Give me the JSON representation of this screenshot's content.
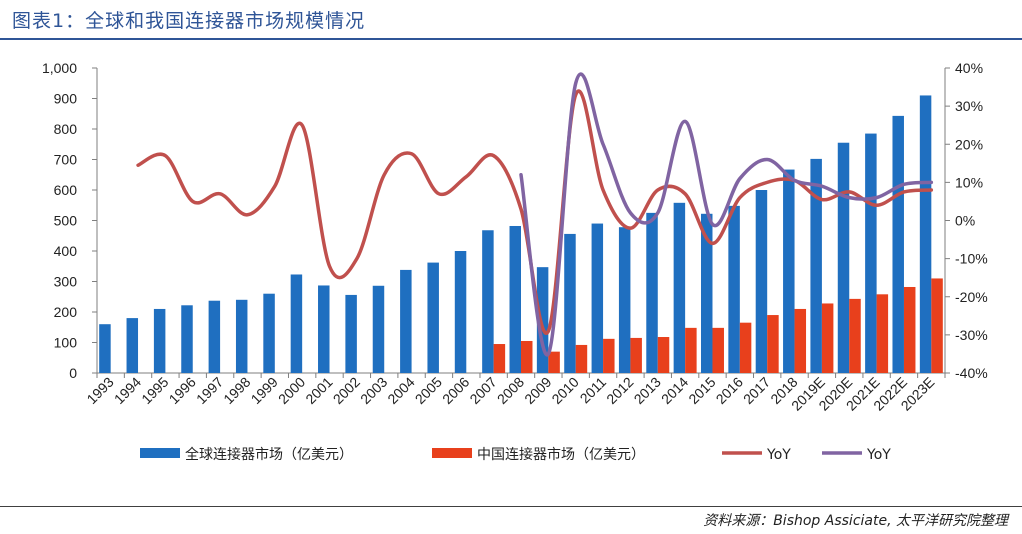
{
  "header": {
    "title": "图表1：全球和我国连接器市场规模情况"
  },
  "footer": {
    "source": "资料来源：Bishop Assiciate, 太平洋研究院整理"
  },
  "colors": {
    "global": "#1f6fc0",
    "china": "#e8401c",
    "yoy_global": "#c0504d",
    "yoy_china": "#8064a2",
    "axis": "#7f7f7f",
    "title": "#2f5597"
  },
  "chart_data": {
    "type": "bar",
    "categories": [
      "1993",
      "1994",
      "1995",
      "1996",
      "1997",
      "1998",
      "1999",
      "2000",
      "2001",
      "2002",
      "2003",
      "2004",
      "2005",
      "2006",
      "2007",
      "2008",
      "2009",
      "2010",
      "2011",
      "2012",
      "2013",
      "2014",
      "2015",
      "2016",
      "2017",
      "2018",
      "2019E",
      "2020E",
      "2021E",
      "2022E",
      "2023E"
    ],
    "left_ticks": [
      "0",
      "100",
      "200",
      "300",
      "400",
      "500",
      "600",
      "700",
      "800",
      "900",
      "1,000"
    ],
    "right_ticks": [
      "-40%",
      "-30%",
      "-20%",
      "-10%",
      "0%",
      "10%",
      "20%",
      "30%",
      "40%"
    ],
    "ylim": [
      0,
      1000
    ],
    "y2lim": [
      -40,
      40
    ],
    "series": [
      {
        "name": "全球连接器市场（亿美元）",
        "kind": "bar",
        "axis": "left",
        "color": "#1f6fc0",
        "values": [
          160,
          180,
          210,
          222,
          237,
          240,
          260,
          323,
          287,
          256,
          286,
          338,
          362,
          400,
          468,
          482,
          347,
          456,
          490,
          478,
          525,
          558,
          522,
          548,
          600,
          667,
          702,
          755,
          785,
          843,
          910
        ]
      },
      {
        "name": "中国连接器市场（亿美元）",
        "kind": "bar",
        "axis": "left",
        "color": "#e8401c",
        "values": [
          null,
          null,
          null,
          null,
          null,
          null,
          null,
          null,
          null,
          null,
          null,
          null,
          null,
          null,
          95,
          105,
          70,
          92,
          112,
          115,
          118,
          148,
          148,
          165,
          190,
          210,
          228,
          243,
          258,
          282,
          310
        ]
      },
      {
        "name": "YoY",
        "kind": "line",
        "axis": "right",
        "color": "#c0504d",
        "values": [
          null,
          14.5,
          17,
          5,
          7,
          1.5,
          9,
          25,
          -12,
          -10,
          12,
          17.5,
          7,
          11.5,
          17,
          3,
          -29,
          33,
          8,
          -2,
          8,
          7,
          -6,
          6,
          10,
          10.5,
          5.5,
          7.5,
          4,
          7.5,
          8
        ]
      },
      {
        "name": "YoY",
        "kind": "line",
        "axis": "right",
        "color": "#8064a2",
        "values": [
          null,
          null,
          null,
          null,
          null,
          null,
          null,
          null,
          null,
          null,
          null,
          null,
          null,
          null,
          null,
          12,
          -35,
          36,
          20,
          2,
          2,
          26,
          -1,
          11,
          16,
          10.5,
          9,
          6,
          6,
          9.5,
          10
        ]
      }
    ],
    "legend_position": "bottom"
  }
}
